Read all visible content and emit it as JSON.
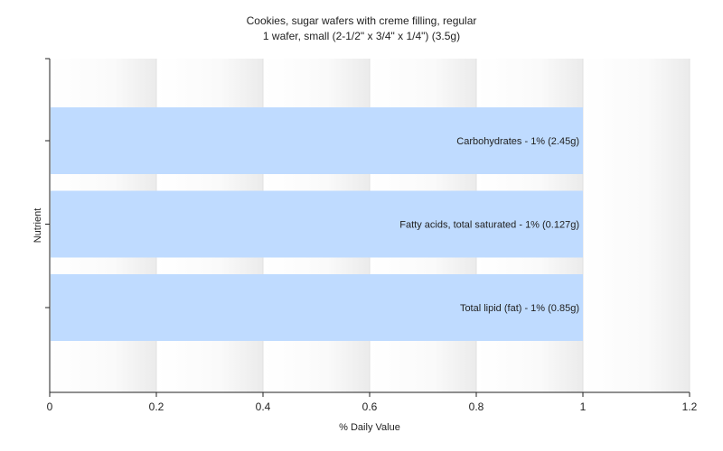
{
  "chart_data": {
    "type": "bar",
    "orientation": "horizontal",
    "title": "Cookies, sugar wafers with creme filling, regular",
    "subtitle": "1 wafer, small (2-1/2\" x 3/4\" x 1/4\") (3.5g)",
    "xlabel": "% Daily Value",
    "ylabel": "Nutrient",
    "xlim": [
      0,
      1.2
    ],
    "xticks": [
      "0",
      "0.2",
      "0.4",
      "0.6",
      "0.8",
      "1",
      "1.2"
    ],
    "grid": true,
    "legend": "none",
    "categories": [
      "Carbohydrates - 1% (2.45g)",
      "Fatty acids, total saturated - 1% (0.127g)",
      "Total lipid (fat) - 1% (0.85g)"
    ],
    "values": [
      1,
      1,
      1
    ],
    "bar_color": "#bfdbff"
  }
}
